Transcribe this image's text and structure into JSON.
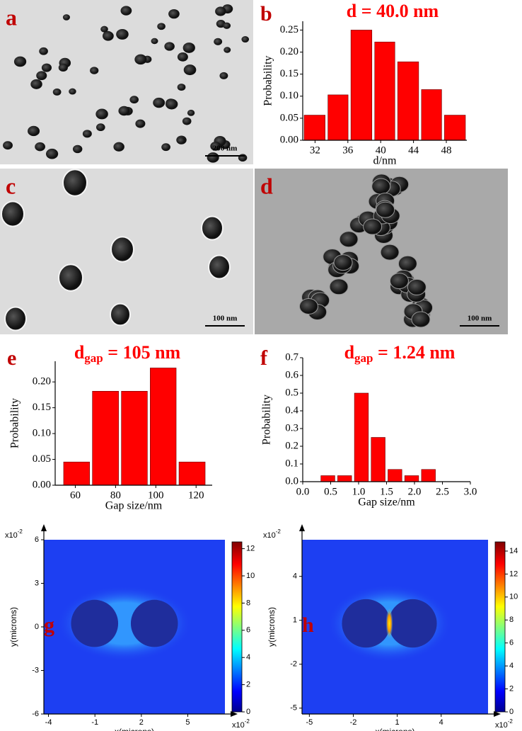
{
  "images": [
    {
      "panel": "a",
      "scale_bar": "200 nm"
    },
    {
      "panel": "c",
      "scale_bar": "100 nm"
    },
    {
      "panel": "d",
      "scale_bar": "100 nm"
    }
  ],
  "chart_data": [
    {
      "type": "histogram",
      "panel": "b",
      "title": {
        "text": "d = 40.0 nm"
      },
      "ylabel": "Probability",
      "xlabel": "d/nm",
      "color": "#ff0000",
      "bins": [
        30.5,
        33.4,
        36.2,
        39.1,
        41.9,
        44.8,
        47.6,
        50.5
      ],
      "values": [
        0.057,
        0.103,
        0.25,
        0.223,
        0.178,
        0.115,
        0.057
      ],
      "xlim": [
        30.5,
        50.5
      ],
      "xticks": [
        32,
        36,
        40,
        44,
        48
      ],
      "ylim": [
        0,
        0.27
      ],
      "yticks": [
        {
          "value": 0,
          "label": "0.00"
        },
        {
          "value": 0.05,
          "label": "0.05"
        },
        {
          "value": 0.1,
          "label": "0.10"
        },
        {
          "value": 0.15,
          "label": "0.15"
        },
        {
          "value": 0.2,
          "label": "0.20"
        },
        {
          "value": 0.25,
          "label": "0.25"
        }
      ]
    },
    {
      "type": "histogram",
      "panel": "e",
      "title": {
        "text": "d",
        "sub": "gap",
        "rest": " = 105 nm"
      },
      "ylabel": "Probability",
      "xlabel": "Gap size/nm",
      "color": "#ff0000",
      "bins": [
        53.5,
        67.8,
        82.2,
        96.5,
        110.8,
        125.2
      ],
      "values": [
        0.045,
        0.182,
        0.182,
        0.227,
        0.045
      ],
      "xlim": [
        50,
        128
      ],
      "xticks": [
        60,
        80,
        100,
        120
      ],
      "ylim": [
        0,
        0.24
      ],
      "yticks": [
        {
          "value": 0,
          "label": "0.00"
        },
        {
          "value": 0.05,
          "label": "0.05"
        },
        {
          "value": 0.1,
          "label": "0.10"
        },
        {
          "value": 0.15,
          "label": "0.15"
        },
        {
          "value": 0.2,
          "label": "0.20"
        }
      ]
    },
    {
      "type": "histogram",
      "panel": "f",
      "title": {
        "text": "d",
        "sub": "gap",
        "rest": " = 1.24 nm"
      },
      "ylabel": "Probability",
      "xlabel": "Gap size/nm",
      "color": "#ff0000",
      "bins": [
        0.3,
        0.6,
        0.9,
        1.2,
        1.5,
        1.8,
        2.1,
        2.4
      ],
      "values": [
        0.034,
        0.034,
        0.5,
        0.25,
        0.069,
        0.034,
        0.069
      ],
      "xlim": [
        0,
        3
      ],
      "xticks": [
        {
          "value": 0,
          "label": "0.0"
        },
        {
          "value": 0.5,
          "label": "0.5"
        },
        {
          "value": 1,
          "label": "1.0"
        },
        {
          "value": 1.5,
          "label": "1.5"
        },
        {
          "value": 2,
          "label": "2.0"
        },
        {
          "value": 2.5,
          "label": "2.5"
        },
        {
          "value": 3,
          "label": "3.0"
        }
      ],
      "ylim": [
        0,
        0.7
      ],
      "yticks": [
        {
          "value": 0,
          "label": "0.0"
        },
        0.1,
        0.2,
        0.3,
        0.4,
        0.5,
        0.6,
        0.7
      ]
    },
    {
      "type": "heatmap",
      "panel": "g",
      "xlabel": "x(microns)",
      "ylabel": "y(microns)",
      "exponent": {
        "base": "x10",
        "power": "-2"
      },
      "xlim": [
        -4.3,
        7.4
      ],
      "xticks": [
        -4,
        -1,
        2,
        5
      ],
      "ylim": [
        -6,
        6
      ],
      "yticks": [
        6,
        3,
        0,
        -3,
        -6
      ],
      "clim": [
        0,
        12.5
      ],
      "cticks": [
        0,
        2,
        4,
        6,
        8,
        10,
        12
      ]
    },
    {
      "type": "heatmap",
      "panel": "h",
      "xlabel": "x(microns)",
      "ylabel": "y(microns)",
      "exponent": {
        "base": "x10",
        "power": "-2"
      },
      "xlim": [
        -5.5,
        7.2
      ],
      "xticks": [
        -5,
        -2,
        1,
        4
      ],
      "ylim": [
        -5.4,
        6.5
      ],
      "yticks": [
        4,
        1,
        -2,
        -5
      ],
      "clim": [
        0,
        14.8
      ],
      "cticks": [
        0,
        2,
        4,
        6,
        8,
        10,
        12,
        14
      ]
    }
  ]
}
